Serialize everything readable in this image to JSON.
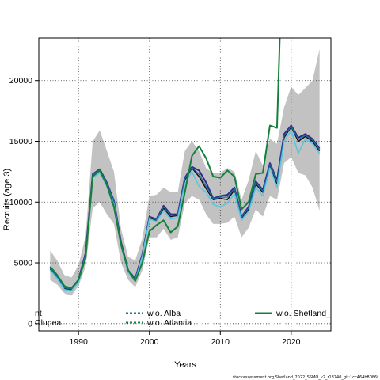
{
  "chart_data": {
    "type": "line",
    "xlabel": "Years",
    "ylabel": "Recruits (age 3)",
    "xlim": [
      1984.4,
      2025.6
    ],
    "ylim": [
      -600,
      23500
    ],
    "xticks": [
      1990,
      2000,
      2010,
      2020
    ],
    "yticks": [
      0,
      5000,
      10000,
      15000,
      20000
    ],
    "grid": true,
    "footer": "stockassessment.org,Shetland_2022_SSMO_v2_r18740_git:1cc464b8086f",
    "legend": {
      "placement": "bottom",
      "entries": [
        {
          "label": "nt",
          "color": "#000000",
          "dash": "solid"
        },
        {
          "label": "Clupea",
          "color": "#000000",
          "dash": "solid"
        },
        {
          "label": "w.o. Alba",
          "color": "#1d6fa8",
          "dash": "dashed"
        },
        {
          "label": "w.o. Atlantia",
          "color": "#1a7d4a",
          "dash": "dashed"
        },
        {
          "label": "w.o. Shetland_",
          "color": "#14803c",
          "dash": "solid"
        }
      ]
    },
    "x": [
      1986,
      1987,
      1988,
      1989,
      1990,
      1991,
      1992,
      1993,
      1994,
      1995,
      1996,
      1997,
      1998,
      1999,
      2000,
      2001,
      2002,
      2003,
      2004,
      2005,
      2006,
      2007,
      2008,
      2009,
      2010,
      2011,
      2012,
      2013,
      2014,
      2015,
      2016,
      2017,
      2018,
      2019,
      2020,
      2021,
      2022,
      2023,
      2024
    ],
    "band": {
      "upper": [
        6000,
        5200,
        4000,
        3800,
        4800,
        7200,
        15000,
        15900,
        14200,
        12500,
        7800,
        5500,
        5200,
        7000,
        10500,
        10600,
        11200,
        10800,
        10800,
        14200,
        15000,
        14200,
        12800,
        12400,
        12400,
        12800,
        12500,
        10200,
        11800,
        14200,
        13000,
        15200,
        14800,
        17800,
        19500,
        18800,
        19400,
        20000,
        22600
      ],
      "lower": [
        3600,
        3200,
        2500,
        2300,
        3100,
        4700,
        9500,
        10000,
        9000,
        8200,
        5000,
        3600,
        3000,
        4400,
        7100,
        7100,
        7800,
        6900,
        7100,
        9900,
        10500,
        10200,
        9000,
        8200,
        8200,
        8300,
        8800,
        7100,
        7900,
        9400,
        8800,
        10500,
        10200,
        13200,
        13700,
        12400,
        12200,
        11200,
        9300
      ]
    },
    "series": [
      {
        "name": "",
        "color": "#141414",
        "values": [
          4500,
          3800,
          2900,
          2800,
          3500,
          5600,
          12200,
          12600,
          11500,
          10000,
          6600,
          4300,
          3600,
          5600,
          8700,
          8500,
          9500,
          8800,
          8900,
          11800,
          12800,
          12100,
          11100,
          10200,
          10300,
          10200,
          11000,
          8700,
          9400,
          11500,
          10800,
          13000,
          11500,
          15300,
          16200,
          15000,
          15400,
          15000,
          14200
        ]
      },
      {
        "name": "",
        "color": "#2e2a88",
        "values": [
          4600,
          3900,
          3000,
          2900,
          3600,
          5800,
          12300,
          12700,
          11600,
          10100,
          6700,
          4400,
          3700,
          5700,
          8800,
          8600,
          9700,
          9000,
          9000,
          12000,
          12900,
          12600,
          11600,
          10300,
          10500,
          10600,
          11200,
          8800,
          9600,
          11700,
          11000,
          13200,
          11800,
          15600,
          16300,
          15300,
          15600,
          15200,
          14400
        ]
      },
      {
        "name": "w.o. Alba",
        "color": "#1d6fa8",
        "values": [
          4550,
          3850,
          2950,
          2850,
          3550,
          5700,
          12250,
          12650,
          11550,
          10050,
          6650,
          4350,
          3650,
          5650,
          8750,
          8550,
          9600,
          8900,
          8950,
          11900,
          12850,
          12300,
          11300,
          10250,
          10400,
          10400,
          11100,
          8750,
          9500,
          11600,
          10900,
          13100,
          11650,
          15450,
          16250,
          15150,
          15500,
          15100,
          14300
        ]
      },
      {
        "name": "w.o. Atlantia",
        "color": "#5cc6de",
        "values": [
          4400,
          3700,
          2800,
          2700,
          3400,
          5500,
          12000,
          12400,
          11300,
          9800,
          6400,
          4200,
          3500,
          5500,
          8600,
          8400,
          9300,
          8600,
          8700,
          11500,
          12500,
          11300,
          10800,
          9800,
          9600,
          9900,
          10700,
          8500,
          9200,
          11200,
          10500,
          12800,
          11200,
          15000,
          15900,
          14000,
          15200,
          14800,
          14000
        ]
      },
      {
        "name": "w.o. Shetland_",
        "color": "#14803c",
        "values": [
          4700,
          4000,
          3100,
          2900,
          3600,
          5400,
          12100,
          12600,
          11400,
          9600,
          6500,
          4400,
          3500,
          5000,
          7600,
          8100,
          8500,
          7500,
          8000,
          10800,
          13800,
          14600,
          13600,
          12100,
          12000,
          12600,
          12100,
          9400,
          10000,
          12300,
          12400,
          16300,
          16100,
          35000,
          null,
          null,
          null,
          null,
          null
        ]
      }
    ]
  }
}
